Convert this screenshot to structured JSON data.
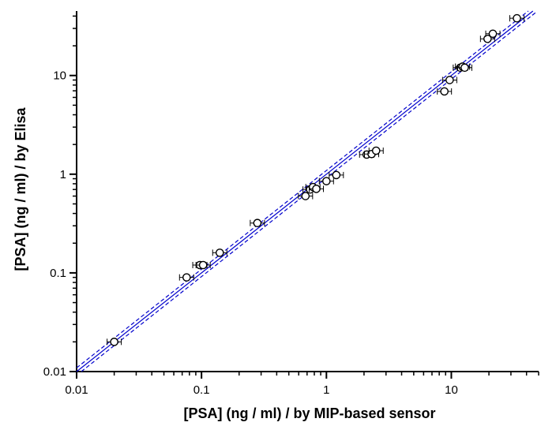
{
  "chart_data": {
    "type": "scatter",
    "xlabel": "[PSA]  (ng / ml) / by MIP-based sensor",
    "ylabel": "[PSA] (ng / ml) / by Elisa",
    "xscale": "log",
    "yscale": "log",
    "xlim": [
      0.01,
      50
    ],
    "ylim": [
      0.01,
      45
    ],
    "xticks": [
      {
        "value": 0.01,
        "label": "0.01"
      },
      {
        "value": 0.1,
        "label": "0.1"
      },
      {
        "value": 1,
        "label": "1"
      },
      {
        "value": 10,
        "label": "10"
      }
    ],
    "yticks": [
      {
        "value": 0.01,
        "label": "0.01"
      },
      {
        "value": 0.1,
        "label": "0.1"
      },
      {
        "value": 1,
        "label": "1"
      },
      {
        "value": 10,
        "label": "10"
      }
    ],
    "grid": false,
    "marker": "open-circle",
    "error_bars": "horizontal",
    "colors": {
      "marker": "#000000",
      "fit_line": "#0000cc",
      "confidence_band": "#0000cc"
    },
    "points": [
      {
        "x": 0.02,
        "y": 0.02
      },
      {
        "x": 0.076,
        "y": 0.09
      },
      {
        "x": 0.097,
        "y": 0.12
      },
      {
        "x": 0.103,
        "y": 0.12
      },
      {
        "x": 0.14,
        "y": 0.16
      },
      {
        "x": 0.28,
        "y": 0.32
      },
      {
        "x": 0.68,
        "y": 0.6
      },
      {
        "x": 0.74,
        "y": 0.7
      },
      {
        "x": 0.78,
        "y": 0.74
      },
      {
        "x": 0.83,
        "y": 0.71
      },
      {
        "x": 1.0,
        "y": 0.85
      },
      {
        "x": 1.2,
        "y": 0.98
      },
      {
        "x": 2.1,
        "y": 1.58
      },
      {
        "x": 2.3,
        "y": 1.6
      },
      {
        "x": 2.5,
        "y": 1.73
      },
      {
        "x": 8.8,
        "y": 6.9
      },
      {
        "x": 9.7,
        "y": 9.0
      },
      {
        "x": 11.8,
        "y": 12.0
      },
      {
        "x": 12.3,
        "y": 12.3
      },
      {
        "x": 12.8,
        "y": 12.0
      },
      {
        "x": 19.5,
        "y": 23.5
      },
      {
        "x": 21.5,
        "y": 26.5
      },
      {
        "x": 33.5,
        "y": 38.0
      }
    ],
    "fit_line": {
      "slope": 1.0,
      "intercept": 0.0
    },
    "confidence_band_factor": 1.09
  }
}
